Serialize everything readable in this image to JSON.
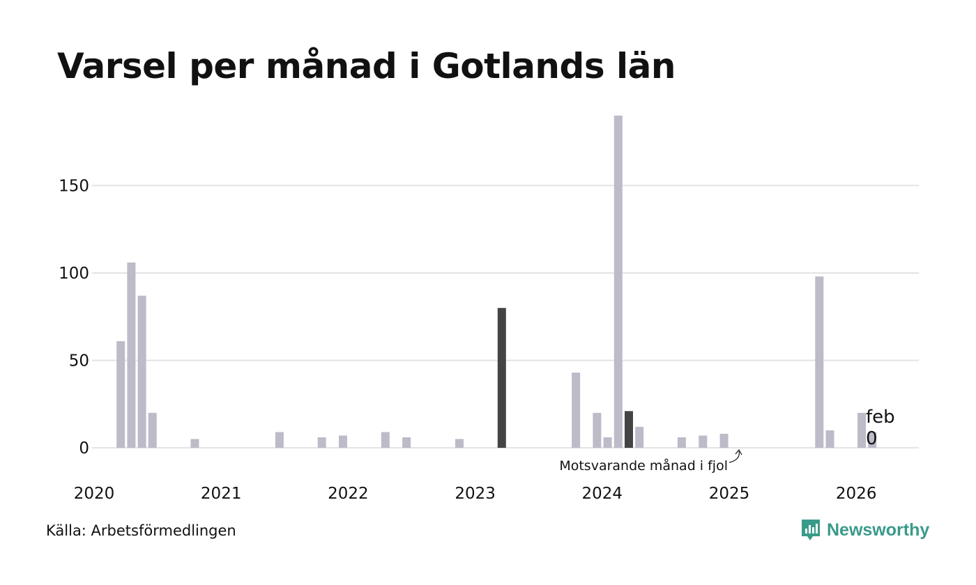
{
  "title": "Varsel per månad i Gotlands län",
  "source": "Källa: Arbetsförmedlingen",
  "brand": "Newsworthy",
  "colors": {
    "bar": "#bdbbc8",
    "highlight": "#444444",
    "grid": "#e3e3e6",
    "brand": "#3a9a8a"
  },
  "chart_data": {
    "type": "bar",
    "title": "Varsel per månad i Gotlands län",
    "xlabel": "",
    "ylabel": "",
    "ylim": [
      0,
      190
    ],
    "yticks": [
      0,
      50,
      100,
      150
    ],
    "xticks": [
      "2020",
      "2021",
      "2022",
      "2023",
      "2024",
      "2025",
      "2026"
    ],
    "grid": true,
    "series": [
      {
        "values": [
          {
            "month": "2020-02",
            "value": 61
          },
          {
            "month": "2020-03",
            "value": 106
          },
          {
            "month": "2020-04",
            "value": 87
          },
          {
            "month": "2020-05",
            "value": 20
          },
          {
            "month": "2020-09",
            "value": 5
          },
          {
            "month": "2021-05",
            "value": 9
          },
          {
            "month": "2021-09",
            "value": 6
          },
          {
            "month": "2021-11",
            "value": 7
          },
          {
            "month": "2022-03",
            "value": 9
          },
          {
            "month": "2022-05",
            "value": 6
          },
          {
            "month": "2022-10",
            "value": 5
          },
          {
            "month": "2023-02",
            "value": 80,
            "highlight": true
          },
          {
            "month": "2023-09",
            "value": 43
          },
          {
            "month": "2023-11",
            "value": 20
          },
          {
            "month": "2023-12",
            "value": 6
          },
          {
            "month": "2024-01",
            "value": 190
          },
          {
            "month": "2024-02",
            "value": 21,
            "highlight": true
          },
          {
            "month": "2024-03",
            "value": 12
          },
          {
            "month": "2024-07",
            "value": 6
          },
          {
            "month": "2024-09",
            "value": 7
          },
          {
            "month": "2024-11",
            "value": 8
          },
          {
            "month": "2025-08",
            "value": 98
          },
          {
            "month": "2025-09",
            "value": 10
          },
          {
            "month": "2025-12",
            "value": 20
          },
          {
            "month": "2026-01",
            "value": 9
          },
          {
            "month": "2026-02",
            "value": 0
          }
        ]
      }
    ],
    "annotations": {
      "previous_year": "Motsvarande månad i fjol",
      "last_month": "feb",
      "last_value": "0"
    }
  }
}
